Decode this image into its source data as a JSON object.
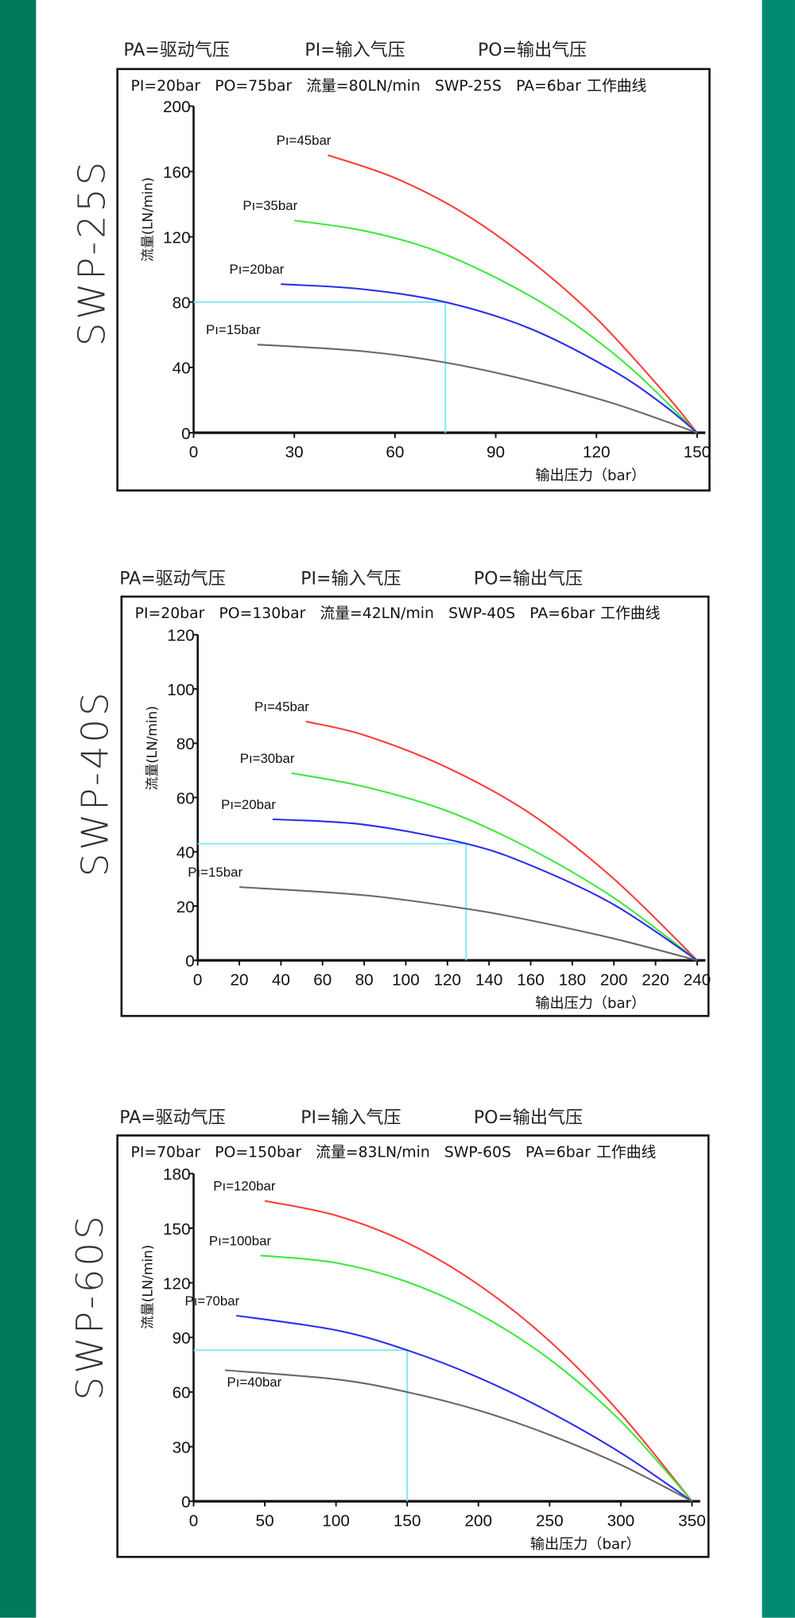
{
  "colors": {
    "left_bar": "#007a5a",
    "right_bar": "#008a72",
    "ref_line": "#7fe8f5",
    "series": [
      "#ff3b3b",
      "#3de83d",
      "#2b2bf0",
      "#6e665e"
    ]
  },
  "chart_data": [
    {
      "type": "line",
      "model": "SWP-25S",
      "legend": [
        "PA=驱动气压",
        "PI=输入气压",
        "PO=输出气压"
      ],
      "subtitle": [
        "PI=20bar",
        "PO=75bar",
        "流量=80LN/min",
        "SWP-25S",
        "PA=6bar 工作曲线"
      ],
      "xlabel": "输出压力（bar）",
      "ylabel": "流量(LN/min)",
      "xlim": [
        0,
        150
      ],
      "ylim": [
        0,
        200
      ],
      "xticks": [
        "0",
        "30",
        "60",
        "90",
        "120",
        "150"
      ],
      "yticks": [
        "0",
        "40",
        "80",
        "120",
        "160",
        "200"
      ],
      "reference": {
        "x": 75,
        "y": 80
      },
      "series": [
        {
          "name": "Pı=45bar",
          "points": [
            [
              40,
              170
            ],
            [
              60,
              156
            ],
            [
              80,
              135
            ],
            [
              100,
              106
            ],
            [
              120,
              70
            ],
            [
              140,
              25
            ],
            [
              150,
              0
            ]
          ]
        },
        {
          "name": "Pı=35bar",
          "points": [
            [
              30,
              130
            ],
            [
              50,
              124
            ],
            [
              70,
              113
            ],
            [
              90,
              95
            ],
            [
              110,
              71.5
            ],
            [
              130,
              40
            ],
            [
              150,
              0
            ]
          ]
        },
        {
          "name": "Pı=20bar",
          "points": [
            [
              26,
              91
            ],
            [
              50,
              88
            ],
            [
              75,
              80
            ],
            [
              100,
              64
            ],
            [
              125,
              38
            ],
            [
              140,
              17
            ],
            [
              150,
              0
            ]
          ]
        },
        {
          "name": "Pı=15bar",
          "points": [
            [
              19,
              54
            ],
            [
              50,
              50
            ],
            [
              75,
              43
            ],
            [
              100,
              32
            ],
            [
              125,
              18
            ],
            [
              150,
              0
            ]
          ]
        }
      ]
    },
    {
      "type": "line",
      "model": "SWP-40S",
      "legend": [
        "PA=驱动气压",
        "PI=输入气压",
        "PO=输出气压"
      ],
      "subtitle": [
        "PI=20bar",
        "PO=130bar",
        "流量=42LN/min",
        "SWP-40S",
        "PA=6bar 工作曲线"
      ],
      "xlabel": "输出压力（bar）",
      "ylabel": "流量(LN/min)",
      "xlim": [
        0,
        240
      ],
      "ylim": [
        0,
        120
      ],
      "xticks": [
        "0",
        "20",
        "40",
        "60",
        "80",
        "100",
        "120",
        "140",
        "160",
        "180",
        "200",
        "220",
        "240"
      ],
      "yticks": [
        "0",
        "20",
        "40",
        "60",
        "80",
        "100",
        "120"
      ],
      "reference": {
        "x": 129,
        "y": 43
      },
      "series": [
        {
          "name": "Pı=45bar",
          "points": [
            [
              52,
              88
            ],
            [
              80,
              83
            ],
            [
              120,
              71
            ],
            [
              160,
              54
            ],
            [
              200,
              30
            ],
            [
              240,
              0
            ]
          ]
        },
        {
          "name": "Pı=30bar",
          "points": [
            [
              45,
              69
            ],
            [
              80,
              64
            ],
            [
              120,
              55
            ],
            [
              160,
              41
            ],
            [
              200,
              23
            ],
            [
              240,
              0
            ]
          ]
        },
        {
          "name": "Pı=20bar",
          "points": [
            [
              36,
              52
            ],
            [
              80,
              50
            ],
            [
              129,
              43
            ],
            [
              160,
              35
            ],
            [
              200,
              20.5
            ],
            [
              240,
              0
            ]
          ]
        },
        {
          "name": "Pı=15bar",
          "points": [
            [
              20,
              27
            ],
            [
              80,
              24
            ],
            [
              129,
              19
            ],
            [
              160,
              14.7
            ],
            [
              200,
              8
            ],
            [
              240,
              0
            ]
          ]
        }
      ]
    },
    {
      "type": "line",
      "model": "SWP-60S",
      "legend": [
        "PA=驱动气压",
        "PI=输入气压",
        "PO=输出气压"
      ],
      "subtitle": [
        "PI=70bar",
        "PO=150bar",
        "流量=83LN/min",
        "SWP-60S",
        "PA=6bar 工作曲线"
      ],
      "xlabel": "输出压力（bar）",
      "ylabel": "流量(LN/min)",
      "xlim": [
        0,
        350
      ],
      "ylim": [
        0,
        180
      ],
      "xticks": [
        "0",
        "50",
        "100",
        "150",
        "200",
        "250",
        "300",
        "350"
      ],
      "yticks": [
        "0",
        "30",
        "60",
        "90",
        "120",
        "150",
        "180"
      ],
      "reference": {
        "x": 150,
        "y": 83
      },
      "series": [
        {
          "name": "Pı=120bar",
          "points": [
            [
              50,
              165
            ],
            [
              100,
              157
            ],
            [
              150,
              142
            ],
            [
              200,
              119
            ],
            [
              250,
              88
            ],
            [
              300,
              48
            ],
            [
              350,
              0
            ]
          ]
        },
        {
          "name": "Pı=100bar",
          "points": [
            [
              47,
              135
            ],
            [
              100,
              131
            ],
            [
              150,
              120.5
            ],
            [
              200,
              103
            ],
            [
              250,
              78
            ],
            [
              300,
              44
            ],
            [
              350,
              0
            ]
          ]
        },
        {
          "name": "Pı=70bar",
          "points": [
            [
              30,
              102
            ],
            [
              100,
              94
            ],
            [
              150,
              83
            ],
            [
              200,
              68
            ],
            [
              250,
              49
            ],
            [
              300,
              26.6
            ],
            [
              350,
              0
            ]
          ]
        },
        {
          "name": "Pı=40bar",
          "points": [
            [
              22,
              72
            ],
            [
              100,
              67
            ],
            [
              150,
              60
            ],
            [
              200,
              50
            ],
            [
              250,
              36.5
            ],
            [
              300,
              20
            ],
            [
              350,
              0
            ]
          ]
        }
      ]
    }
  ]
}
